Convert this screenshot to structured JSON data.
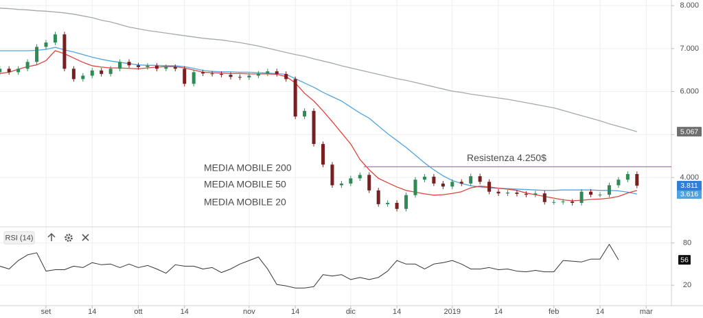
{
  "chart_data": [
    {
      "type": "candlestick",
      "categories": [
        null,
        null,
        null,
        null,
        null,
        "set",
        null,
        null,
        null,
        null,
        "14",
        null,
        null,
        null,
        null,
        "ott",
        null,
        null,
        null,
        null,
        "14",
        null,
        null,
        null,
        null,
        null,
        null,
        "nov",
        null,
        null,
        null,
        null,
        "14",
        null,
        null,
        null,
        null,
        null,
        "dic",
        null,
        null,
        null,
        null,
        "14",
        null,
        null,
        null,
        null,
        null,
        "2019",
        null,
        null,
        null,
        null,
        "14",
        null,
        null,
        null,
        null,
        null,
        "feb",
        null,
        null,
        null,
        null,
        "14",
        null,
        null,
        null,
        null,
        "mar"
      ],
      "open": [
        6.45,
        6.53,
        6.45,
        6.53,
        6.69,
        7.04,
        7.14,
        7.33,
        6.53,
        6.29,
        6.37,
        6.49,
        6.41,
        6.53,
        6.69,
        6.61,
        6.57,
        6.6,
        6.53,
        6.57,
        6.53,
        6.18,
        6.45,
        6.42,
        6.41,
        6.39,
        6.34,
        6.33,
        6.37,
        6.42,
        6.47,
        6.41,
        6.29,
        5.42,
        5.55,
        4.78,
        4.3,
        3.82,
        3.86,
        3.98,
        4.06,
        3.7,
        3.38,
        3.41,
        3.27,
        3.59,
        3.95,
        4.02,
        3.86,
        3.79,
        3.9,
        3.86,
        4.03,
        3.9,
        3.67,
        3.63,
        3.65,
        3.62,
        3.6,
        3.63,
        3.43,
        3.43,
        3.44,
        3.41,
        3.67,
        3.6,
        3.6,
        3.82,
        3.95,
        4.08,
        null
      ],
      "high": [
        6.59,
        6.59,
        6.59,
        6.75,
        7.1,
        7.2,
        7.39,
        7.39,
        6.59,
        6.43,
        6.55,
        6.55,
        6.59,
        6.75,
        6.75,
        6.67,
        6.66,
        6.66,
        6.63,
        6.63,
        6.59,
        6.51,
        6.51,
        6.48,
        6.47,
        6.45,
        6.4,
        6.43,
        6.48,
        6.53,
        6.53,
        6.47,
        6.35,
        5.61,
        5.61,
        4.84,
        4.36,
        3.92,
        4.04,
        4.12,
        4.12,
        3.76,
        3.47,
        3.47,
        3.65,
        4.01,
        4.08,
        4.08,
        3.92,
        3.96,
        3.96,
        4.09,
        4.09,
        3.96,
        3.73,
        3.71,
        3.71,
        3.68,
        3.69,
        3.69,
        3.49,
        3.5,
        3.5,
        3.73,
        3.73,
        3.66,
        3.88,
        4.01,
        4.14,
        4.14,
        null
      ],
      "low": [
        6.39,
        6.39,
        6.39,
        6.47,
        6.63,
        6.98,
        7.08,
        6.47,
        6.23,
        6.23,
        6.31,
        6.35,
        6.35,
        6.47,
        6.55,
        6.51,
        6.51,
        6.47,
        6.47,
        6.47,
        6.12,
        6.12,
        6.36,
        6.35,
        6.33,
        6.28,
        6.27,
        6.27,
        6.31,
        6.36,
        6.35,
        6.23,
        5.36,
        5.36,
        4.72,
        4.24,
        3.76,
        3.76,
        3.8,
        3.92,
        3.64,
        3.32,
        3.32,
        3.21,
        3.21,
        3.53,
        3.89,
        3.8,
        3.73,
        3.73,
        3.8,
        3.8,
        3.84,
        3.61,
        3.57,
        3.57,
        3.56,
        3.54,
        3.54,
        3.37,
        3.37,
        3.37,
        3.35,
        3.35,
        3.54,
        3.54,
        3.54,
        3.76,
        3.89,
        3.75,
        null
      ],
      "close": [
        6.53,
        6.45,
        6.53,
        6.69,
        7.04,
        7.14,
        7.33,
        6.53,
        6.29,
        6.37,
        6.49,
        6.41,
        6.53,
        6.69,
        6.61,
        6.57,
        6.6,
        6.53,
        6.57,
        6.53,
        6.18,
        6.45,
        6.42,
        6.41,
        6.39,
        6.34,
        6.33,
        6.37,
        6.42,
        6.47,
        6.41,
        6.29,
        5.42,
        5.55,
        4.78,
        4.3,
        3.82,
        3.86,
        3.98,
        4.06,
        3.7,
        3.38,
        3.41,
        3.27,
        3.59,
        3.95,
        4.02,
        3.86,
        3.79,
        3.9,
        3.86,
        4.03,
        3.9,
        3.67,
        3.63,
        3.65,
        3.62,
        3.6,
        3.63,
        3.43,
        3.43,
        3.44,
        3.41,
        3.67,
        3.6,
        3.6,
        3.82,
        3.95,
        4.08,
        3.811,
        null
      ],
      "up_color": "#2f8a57",
      "down_color": "#7a1f1f",
      "close_tag_color": "#2f7fd8",
      "series": [
        {
          "name": "MEDIA MOBILE 200",
          "color": "#a3a9a9",
          "tag": true,
          "values": [
            7.94,
            7.93,
            7.91,
            7.9,
            7.88,
            7.87,
            7.85,
            7.83,
            7.8,
            7.76,
            7.72,
            7.66,
            7.62,
            7.56,
            7.5,
            7.46,
            7.42,
            7.39,
            7.36,
            7.33,
            7.3,
            7.27,
            7.24,
            7.22,
            7.2,
            7.17,
            7.14,
            7.1,
            7.06,
            7.01,
            6.96,
            6.91,
            6.86,
            6.82,
            6.76,
            6.71,
            6.66,
            6.6,
            6.55,
            6.5,
            6.45,
            6.4,
            6.35,
            6.3,
            6.26,
            6.21,
            6.16,
            6.11,
            6.06,
            6.01,
            5.98,
            5.94,
            5.91,
            5.88,
            5.85,
            5.82,
            5.78,
            5.74,
            5.7,
            5.66,
            5.62,
            5.56,
            5.5,
            5.44,
            5.38,
            5.32,
            5.25,
            5.19,
            5.13,
            5.067,
            null
          ]
        },
        {
          "name": "MEDIA MOBILE 50",
          "color": "#4fa3e3",
          "tag": true,
          "values": [
            6.95,
            6.95,
            6.95,
            6.95,
            6.96,
            6.98,
            7.03,
            6.97,
            6.92,
            6.86,
            6.8,
            6.75,
            6.71,
            6.68,
            6.65,
            6.62,
            6.61,
            6.61,
            6.6,
            6.6,
            6.58,
            6.54,
            6.49,
            6.47,
            6.46,
            6.46,
            6.45,
            6.45,
            6.44,
            6.43,
            6.42,
            6.4,
            6.3,
            6.2,
            6.1,
            5.98,
            5.88,
            5.78,
            5.64,
            5.5,
            5.38,
            5.2,
            5.02,
            4.86,
            4.7,
            4.52,
            4.34,
            4.18,
            4.04,
            3.93,
            3.86,
            3.81,
            3.78,
            3.76,
            3.75,
            3.74,
            3.73,
            3.72,
            3.71,
            3.7,
            3.7,
            3.71,
            3.71,
            3.71,
            3.71,
            3.7,
            3.7,
            3.69,
            3.66,
            3.616,
            null
          ]
        },
        {
          "name": "MEDIA MOBILE 20",
          "color": "#e0413a",
          "tag": false,
          "values": [
            6.42,
            6.45,
            6.52,
            6.58,
            6.62,
            6.72,
            6.95,
            6.88,
            6.78,
            6.68,
            6.6,
            6.57,
            6.55,
            6.55,
            6.54,
            6.53,
            6.55,
            6.57,
            6.58,
            6.58,
            6.55,
            6.5,
            6.45,
            6.44,
            6.43,
            6.42,
            6.42,
            6.41,
            6.41,
            6.41,
            6.4,
            6.35,
            6.2,
            5.96,
            5.78,
            5.55,
            5.3,
            5.04,
            4.78,
            4.42,
            4.18,
            3.98,
            3.88,
            3.78,
            3.7,
            3.66,
            3.62,
            3.59,
            3.6,
            3.63,
            3.67,
            3.76,
            3.8,
            3.78,
            3.75,
            3.73,
            3.7,
            3.64,
            3.6,
            3.56,
            3.52,
            3.48,
            3.46,
            3.47,
            3.49,
            3.5,
            3.52,
            3.56,
            3.64,
            3.7,
            null
          ]
        }
      ],
      "annotation": {
        "label": "Resistenza 4.250$",
        "value": 4.25,
        "color": "#b05cc7"
      },
      "ylim": [
        2.9,
        8.13
      ],
      "yticks": [
        {
          "value": 4,
          "label": "4.000"
        },
        {
          "value": 5,
          "label": "5.000"
        },
        {
          "value": 6,
          "label": "6.000"
        },
        {
          "value": 7,
          "label": "7.000"
        },
        {
          "value": 8,
          "label": "8.000"
        }
      ],
      "grid": true
    },
    {
      "type": "line",
      "title": "RSI (14)",
      "color": "#333333",
      "tag_color": "#111111",
      "values": [
        47,
        43,
        55,
        63,
        66,
        40,
        42,
        42,
        47,
        45,
        52,
        49,
        50,
        45,
        50,
        45,
        48,
        43,
        37,
        49,
        47,
        47,
        43,
        45,
        38,
        43,
        50,
        55,
        60,
        43,
        21,
        19,
        16,
        16,
        18,
        35,
        33,
        35,
        28,
        31,
        28,
        31,
        40,
        55,
        50,
        50,
        43,
        50,
        52,
        55,
        50,
        43,
        43,
        45,
        42,
        43,
        40,
        39,
        41,
        39,
        39,
        55,
        54,
        53,
        57,
        57,
        78,
        56,
        null,
        null,
        null
      ],
      "ylim": [
        -9,
        94
      ],
      "yticks": [
        20,
        80
      ],
      "grid": true
    }
  ]
}
